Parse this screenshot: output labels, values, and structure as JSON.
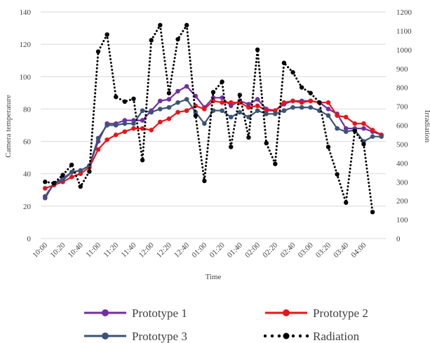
{
  "chart_data": {
    "type": "line",
    "title": "",
    "xlabel": "Time",
    "ylabel": "Camera temperature",
    "y2label": "Irradiation",
    "ylim": [
      0,
      140
    ],
    "y2lim": [
      0,
      1200
    ],
    "yticks": [
      "0",
      "20",
      "40",
      "60",
      "80",
      "100",
      "120",
      "140"
    ],
    "y2ticks": [
      "0",
      "100",
      "200",
      "300",
      "400",
      "500",
      "600",
      "700",
      "800",
      "900",
      "1000",
      "1100",
      "1200"
    ],
    "xtick_labels": [
      "10:00",
      "10:20",
      "10:40",
      "11:00",
      "11:20",
      "11:40",
      "12:00",
      "12:20",
      "12:40",
      "01:00",
      "01:20",
      "01:40",
      "02:00",
      "02:20",
      "02:40",
      "03:00",
      "03:20",
      "03:40",
      "04:00"
    ],
    "grid": "horizontal",
    "legend_position": "bottom",
    "colors": {
      "prototype1": "#7030a0",
      "prototype2": "#e8141a",
      "prototype3": "#3b5474",
      "radiation": "#000000",
      "grid": "#d9d9d9",
      "axis_text": "#404040"
    },
    "x": [
      "10:00",
      "10:10",
      "10:20",
      "10:30",
      "10:40",
      "10:50",
      "11:00",
      "11:10",
      "11:20",
      "11:30",
      "11:40",
      "11:50",
      "12:00",
      "12:10",
      "12:20",
      "12:30",
      "12:40",
      "12:50",
      "01:00",
      "01:10",
      "01:20",
      "01:30",
      "01:40",
      "01:50",
      "02:00",
      "02:10",
      "02:20",
      "02:30",
      "02:40",
      "02:50",
      "03:00",
      "03:10",
      "03:20",
      "03:30",
      "03:40",
      "03:50",
      "04:00",
      "04:10",
      "04:20"
    ],
    "series": [
      {
        "name": "Prototype 1",
        "axis": "left",
        "color_key": "prototype1",
        "style": "solid",
        "values": [
          25,
          34,
          37,
          41,
          42,
          45,
          60,
          71,
          71,
          73,
          73,
          73,
          79,
          85,
          86,
          91,
          94,
          88,
          81,
          87,
          87,
          82,
          85,
          83,
          86,
          80,
          79,
          83,
          85,
          85,
          85,
          84,
          80,
          77,
          68,
          68,
          68,
          66,
          64
        ]
      },
      {
        "name": "Prototype 2",
        "axis": "left",
        "color_key": "prototype2",
        "style": "solid",
        "values": [
          31,
          33,
          35,
          38,
          40,
          44,
          55,
          61,
          64,
          66,
          68,
          68,
          67,
          72,
          74,
          78,
          79,
          82,
          80,
          85,
          84,
          84,
          84,
          81,
          82,
          79,
          79,
          84,
          85,
          84,
          85,
          84,
          84,
          76,
          75,
          71,
          71,
          67,
          64
        ]
      },
      {
        "name": "Prototype 3",
        "axis": "left",
        "color_key": "prototype3",
        "style": "solid",
        "values": [
          26,
          34,
          36,
          41,
          42,
          45,
          62,
          70,
          70,
          71,
          71,
          79,
          78,
          80,
          81,
          84,
          86,
          78,
          71,
          79,
          79,
          75,
          78,
          75,
          79,
          77,
          77,
          79,
          81,
          81,
          81,
          79,
          76,
          68,
          66,
          67,
          60,
          63,
          63
        ]
      },
      {
        "name": "Radiation",
        "axis": "right",
        "color_key": "radiation",
        "style": "dotted",
        "values": [
          300,
          293,
          336,
          390,
          275,
          355,
          990,
          1080,
          750,
          725,
          740,
          415,
          1050,
          1130,
          770,
          1055,
          1130,
          650,
          305,
          775,
          830,
          485,
          760,
          535,
          1000,
          505,
          395,
          930,
          880,
          800,
          770,
          720,
          485,
          340,
          190,
          570,
          500,
          140,
          null
        ]
      }
    ],
    "legend": [
      {
        "label": "Prototype 1",
        "color_key": "prototype1",
        "style": "solid"
      },
      {
        "label": "Prototype 2",
        "color_key": "prototype2",
        "style": "solid"
      },
      {
        "label": "Prototype 3",
        "color_key": "prototype3",
        "style": "solid"
      },
      {
        "label": "Radiation",
        "color_key": "radiation",
        "style": "dotted"
      }
    ]
  }
}
